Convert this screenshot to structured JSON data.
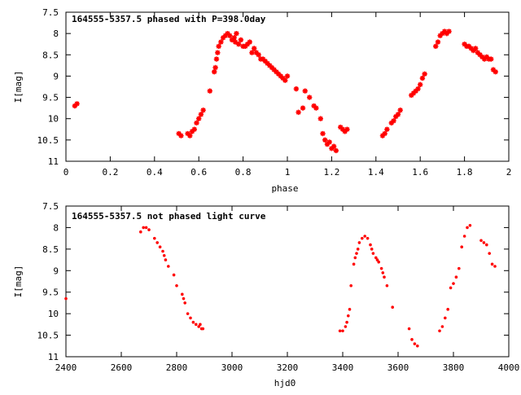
{
  "colors": {
    "points": "#ff0000",
    "axes": "#000000",
    "background": "#ffffff"
  },
  "chart_data": [
    {
      "type": "scatter",
      "title": "164555-5357.5 phased with P=398.0day",
      "xlabel": "phase",
      "ylabel": "I[mag]",
      "xlim": [
        0,
        2
      ],
      "ylim": [
        7.5,
        11
      ],
      "y_inverted": true,
      "grid": false,
      "legend": "none",
      "xticks": [
        "0",
        "0.2",
        "0.4",
        "0.6",
        "0.8",
        "1",
        "1.2",
        "1.4",
        "1.6",
        "1.8",
        "2"
      ],
      "yticks": [
        "7.5",
        "8",
        "8.5",
        "9",
        "9.5",
        "10",
        "10.5",
        "11"
      ],
      "marker": "star",
      "series": [
        {
          "x": [
            0.04,
            0.05,
            0.51,
            0.52,
            0.55,
            0.56,
            0.57,
            0.58,
            0.59,
            0.6,
            0.61,
            0.62,
            0.65,
            0.67,
            0.675,
            0.68,
            0.685,
            0.69,
            0.7,
            0.71,
            0.72,
            0.73,
            0.74,
            0.75,
            0.76,
            0.765,
            0.77,
            0.78,
            0.79,
            0.8,
            0.81,
            0.82,
            0.83,
            0.84,
            0.85,
            0.86,
            0.87,
            0.88,
            0.89,
            0.9,
            0.91,
            0.92,
            0.93,
            0.94,
            0.95,
            0.96,
            0.97,
            0.98,
            0.99,
            1.0,
            1.04,
            1.05,
            1.07,
            1.08,
            1.1,
            1.12,
            1.13,
            1.15,
            1.16,
            1.17,
            1.18,
            1.19,
            1.2,
            1.21,
            1.22,
            1.24,
            1.25,
            1.26,
            1.27,
            1.43,
            1.44,
            1.45,
            1.47,
            1.48,
            1.49,
            1.5,
            1.51,
            1.56,
            1.57,
            1.58,
            1.59,
            1.6,
            1.61,
            1.62,
            1.67,
            1.68,
            1.69,
            1.7,
            1.71,
            1.72,
            1.73,
            1.8,
            1.81,
            1.82,
            1.83,
            1.84,
            1.85,
            1.86,
            1.87,
            1.88,
            1.89,
            1.9,
            1.91,
            1.92,
            1.93,
            1.94
          ],
          "y": [
            9.7,
            9.65,
            10.35,
            10.4,
            10.35,
            10.4,
            10.3,
            10.25,
            10.1,
            10.0,
            9.9,
            9.8,
            9.35,
            8.9,
            8.8,
            8.6,
            8.45,
            8.3,
            8.2,
            8.1,
            8.05,
            8.0,
            8.05,
            8.15,
            8.1,
            8.2,
            8.0,
            8.25,
            8.15,
            8.3,
            8.3,
            8.25,
            8.2,
            8.45,
            8.35,
            8.45,
            8.5,
            8.6,
            8.6,
            8.65,
            8.7,
            8.75,
            8.8,
            8.85,
            8.9,
            8.95,
            9.0,
            9.05,
            9.1,
            9.0,
            9.3,
            9.85,
            9.75,
            9.35,
            9.5,
            9.7,
            9.75,
            10.0,
            10.35,
            10.5,
            10.6,
            10.55,
            10.7,
            10.65,
            10.75,
            10.2,
            10.25,
            10.3,
            10.25,
            10.4,
            10.35,
            10.25,
            10.1,
            10.05,
            9.95,
            9.9,
            9.8,
            9.45,
            9.4,
            9.35,
            9.3,
            9.2,
            9.05,
            8.95,
            8.3,
            8.2,
            8.05,
            8.0,
            7.95,
            8.0,
            7.95,
            8.25,
            8.3,
            8.3,
            8.35,
            8.4,
            8.35,
            8.45,
            8.5,
            8.55,
            8.6,
            8.55,
            8.6,
            8.6,
            8.85,
            8.9
          ]
        }
      ]
    },
    {
      "type": "scatter",
      "title": "164555-5357.5 not phased light curve",
      "xlabel": "hjd0",
      "ylabel": "I[mag]",
      "xlim": [
        2400,
        4000
      ],
      "ylim": [
        7.5,
        11
      ],
      "y_inverted": true,
      "grid": false,
      "legend": "none",
      "xticks": [
        "2400",
        "2600",
        "2800",
        "3000",
        "3200",
        "3400",
        "3600",
        "3800",
        "4000"
      ],
      "yticks": [
        "7.5",
        "8",
        "8.5",
        "9",
        "9.5",
        "10",
        "10.5",
        "11"
      ],
      "marker": "dot",
      "series": [
        {
          "x": [
            2400,
            2670,
            2680,
            2690,
            2700,
            2720,
            2730,
            2740,
            2750,
            2755,
            2760,
            2770,
            2790,
            2800,
            2820,
            2825,
            2830,
            2840,
            2850,
            2860,
            2870,
            2880,
            2885,
            2890,
            2895,
            3390,
            3400,
            3410,
            3415,
            3420,
            3425,
            3430,
            3440,
            3445,
            3450,
            3455,
            3460,
            3470,
            3480,
            3490,
            3500,
            3505,
            3510,
            3520,
            3525,
            3530,
            3540,
            3545,
            3550,
            3560,
            3580,
            3640,
            3650,
            3660,
            3670,
            3750,
            3760,
            3770,
            3780,
            3790,
            3800,
            3810,
            3820,
            3830,
            3840,
            3850,
            3860,
            3900,
            3910,
            3920,
            3930,
            3940,
            3950
          ],
          "y": [
            9.65,
            8.1,
            8.0,
            8.0,
            8.05,
            8.25,
            8.35,
            8.45,
            8.55,
            8.65,
            8.75,
            8.9,
            9.1,
            9.35,
            9.55,
            9.65,
            9.75,
            10.0,
            10.1,
            10.2,
            10.25,
            10.3,
            10.25,
            10.35,
            10.35,
            10.4,
            10.4,
            10.3,
            10.2,
            10.05,
            9.9,
            9.35,
            8.85,
            8.7,
            8.6,
            8.5,
            8.35,
            8.25,
            8.2,
            8.25,
            8.4,
            8.5,
            8.6,
            8.7,
            8.75,
            8.8,
            8.95,
            9.05,
            9.15,
            9.35,
            9.85,
            10.35,
            10.6,
            10.7,
            10.75,
            10.4,
            10.3,
            10.1,
            9.9,
            9.4,
            9.3,
            9.15,
            8.95,
            8.45,
            8.2,
            8.0,
            7.95,
            8.3,
            8.35,
            8.4,
            8.6,
            8.85,
            8.9
          ]
        }
      ]
    }
  ]
}
